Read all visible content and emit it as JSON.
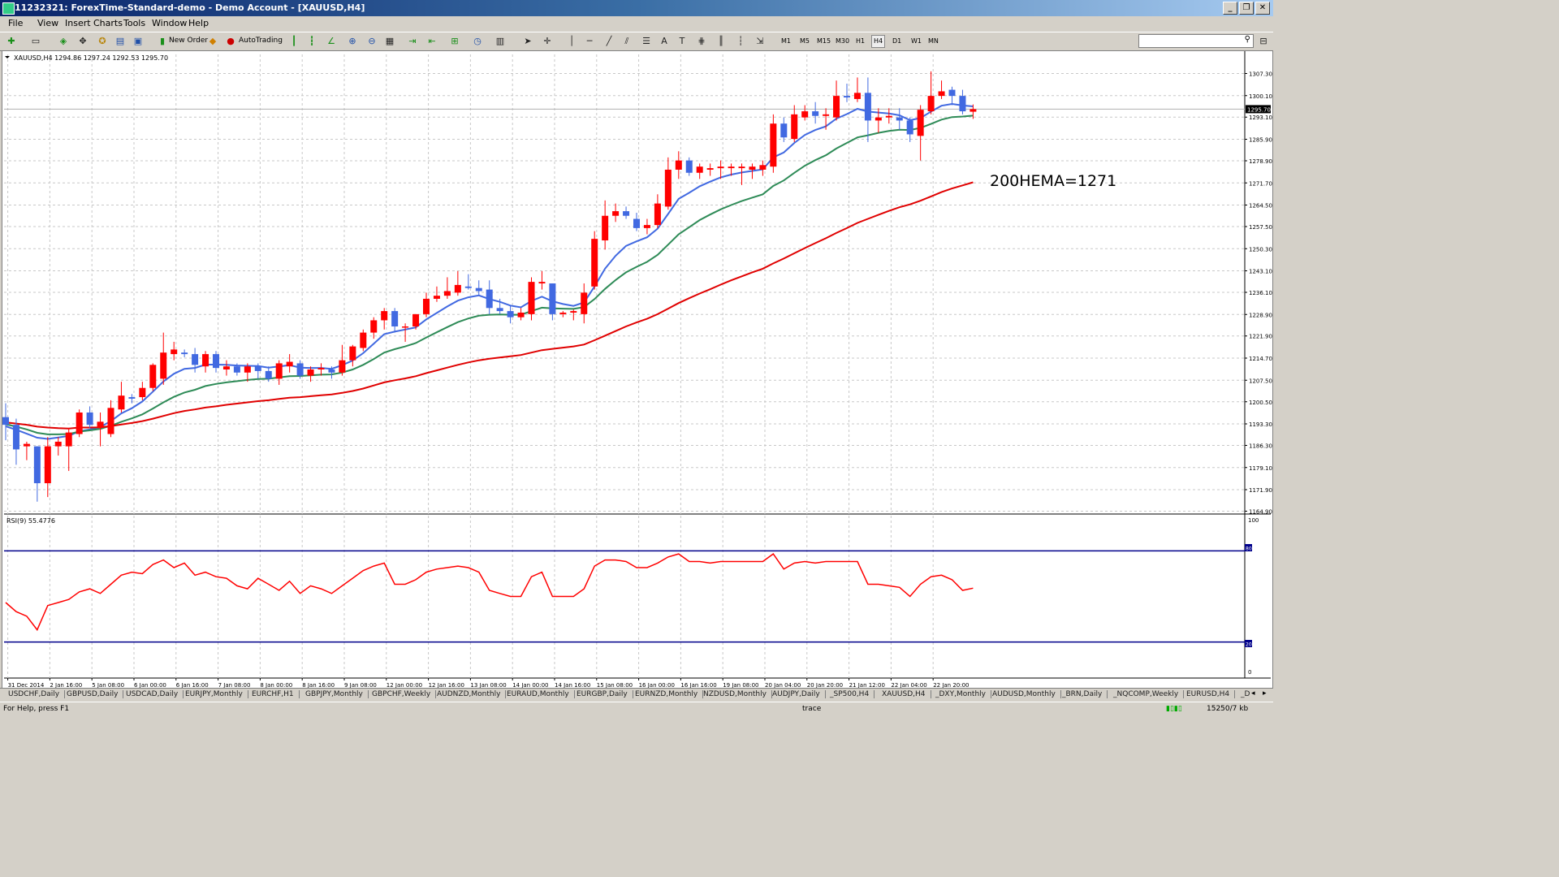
{
  "window": {
    "title": "11232321: ForexTime-Standard-demo - Demo Account - [XAUUSD,H4]",
    "buttons": [
      "_",
      "❐",
      "✕"
    ]
  },
  "menu": [
    "File",
    "View",
    "Insert",
    "Charts",
    "Tools",
    "Window",
    "Help"
  ],
  "toolbar": {
    "new_order_label": "New Order",
    "autotrading_label": "AutoTrading",
    "timeframes": [
      "M1",
      "M5",
      "M15",
      "M30",
      "H1",
      "H4",
      "D1",
      "W1",
      "MN"
    ],
    "active_timeframe": "H4"
  },
  "chart": {
    "header": "XAUUSD,H4  1294.86 1297.24 1292.53 1295.70",
    "annotation": "200HEMA=1271",
    "current_price": "1295.70",
    "price_ticks": [
      "1307.30",
      "1300.10",
      "1293.10",
      "1285.90",
      "1278.90",
      "1271.70",
      "1264.50",
      "1257.50",
      "1250.30",
      "1243.10",
      "1236.10",
      "1228.90",
      "1221.90",
      "1214.70",
      "1207.50",
      "1200.50",
      "1193.30",
      "1186.30",
      "1179.10",
      "1171.90",
      "1164.90"
    ],
    "time_ticks": [
      "31 Dec 2014",
      "2 Jan 16:00",
      "5 Jan 08:00",
      "6 Jan 00:00",
      "6 Jan 16:00",
      "7 Jan 08:00",
      "8 Jan 00:00",
      "8 Jan 16:00",
      "9 Jan 08:00",
      "12 Jan 00:00",
      "12 Jan 16:00",
      "13 Jan 08:00",
      "14 Jan 00:00",
      "14 Jan 16:00",
      "15 Jan 08:00",
      "16 Jan 00:00",
      "16 Jan 16:00",
      "19 Jan 08:00",
      "20 Jan 04:00",
      "20 Jan 20:00",
      "21 Jan 12:00",
      "22 Jan 04:00",
      "22 Jan 20:00"
    ],
    "colors": {
      "bull": "#4169e1",
      "bear": "#ff0000",
      "ema_fast": "#4169e1",
      "ema_mid": "#2e8b57",
      "ema_slow": "#e00000",
      "grid": "#c8c8c8"
    }
  },
  "rsi": {
    "header": "RSI(9) 55.4776",
    "levels": [
      "100",
      "80",
      "20",
      "0"
    ],
    "color": "#ff0000",
    "level_color": "#00008b"
  },
  "chart_data": {
    "type": "candlestick",
    "symbol": "XAUUSD",
    "timeframe": "H4",
    "ylim": [
      1164.9,
      1310.0
    ],
    "candles": [
      [
        1195.5,
        1200.0,
        1188.0,
        1193.0
      ],
      [
        1193.0,
        1195.0,
        1180.0,
        1185.0
      ],
      [
        1186.0,
        1187.5,
        1181.5,
        1186.8
      ],
      [
        1186.0,
        1186.0,
        1168.0,
        1174.0
      ],
      [
        1174.0,
        1189.0,
        1169.5,
        1186.0
      ],
      [
        1186.0,
        1189.0,
        1183.0,
        1187.5
      ],
      [
        1186.0,
        1192.0,
        1178.0,
        1190.5
      ],
      [
        1190.0,
        1198.0,
        1189.0,
        1197.0
      ],
      [
        1197.0,
        1199.0,
        1192.0,
        1193.0
      ],
      [
        1192.0,
        1197.0,
        1186.0,
        1194.0
      ],
      [
        1190.0,
        1201.0,
        1189.0,
        1198.5
      ],
      [
        1198.0,
        1207.0,
        1197.0,
        1202.5
      ],
      [
        1202.0,
        1203.0,
        1200.0,
        1201.5
      ],
      [
        1202.0,
        1207.0,
        1201.0,
        1205.0
      ],
      [
        1205.0,
        1213.0,
        1204.0,
        1212.5
      ],
      [
        1208.0,
        1223.0,
        1206.0,
        1216.5
      ],
      [
        1216.0,
        1220.0,
        1214.0,
        1217.5
      ],
      [
        1216.5,
        1217.5,
        1215.0,
        1216.0
      ],
      [
        1216.0,
        1218.0,
        1210.0,
        1212.5
      ],
      [
        1212.0,
        1217.0,
        1210.0,
        1216.0
      ],
      [
        1216.0,
        1217.0,
        1210.0,
        1211.5
      ],
      [
        1211.0,
        1214.0,
        1209.0,
        1212.0
      ],
      [
        1212.0,
        1213.0,
        1209.0,
        1210.0
      ],
      [
        1210.0,
        1213.0,
        1207.0,
        1212.0
      ],
      [
        1212.0,
        1213.0,
        1208.0,
        1210.5
      ],
      [
        1210.5,
        1212.0,
        1207.0,
        1208.0
      ],
      [
        1208.0,
        1214.0,
        1206.0,
        1213.0
      ],
      [
        1212.0,
        1216.0,
        1210.0,
        1213.5
      ],
      [
        1213.0,
        1214.0,
        1208.0,
        1209.0
      ],
      [
        1209.0,
        1212.0,
        1207.0,
        1211.0
      ],
      [
        1211.0,
        1213.0,
        1209.0,
        1211.5
      ],
      [
        1211.0,
        1212.0,
        1208.0,
        1210.0
      ],
      [
        1210.0,
        1219.0,
        1209.0,
        1214.0
      ],
      [
        1214.0,
        1219.0,
        1212.0,
        1218.5
      ],
      [
        1218.0,
        1224.0,
        1217.0,
        1223.0
      ],
      [
        1223.0,
        1228.0,
        1221.0,
        1227.0
      ],
      [
        1227.0,
        1231.0,
        1224.0,
        1230.0
      ],
      [
        1230.0,
        1231.0,
        1223.0,
        1225.0
      ],
      [
        1225.0,
        1226.0,
        1220.0,
        1225.0
      ],
      [
        1225.0,
        1229.0,
        1224.0,
        1229.0
      ],
      [
        1229.0,
        1236.0,
        1228.0,
        1234.0
      ],
      [
        1234.0,
        1238.0,
        1233.0,
        1235.0
      ],
      [
        1235.0,
        1241.0,
        1234.0,
        1236.5
      ],
      [
        1236.0,
        1243.0,
        1235.0,
        1238.5
      ],
      [
        1238.0,
        1242.0,
        1237.0,
        1237.5
      ],
      [
        1237.5,
        1240.0,
        1235.0,
        1236.5
      ],
      [
        1237.0,
        1240.0,
        1229.0,
        1231.0
      ],
      [
        1231.0,
        1234.0,
        1229.0,
        1230.0
      ],
      [
        1230.0,
        1232.0,
        1226.0,
        1228.0
      ],
      [
        1228.0,
        1231.0,
        1227.0,
        1229.5
      ],
      [
        1229.0,
        1241.0,
        1227.0,
        1239.5
      ],
      [
        1239.0,
        1243.0,
        1237.0,
        1239.5
      ],
      [
        1239.0,
        1239.0,
        1227.0,
        1229.0
      ],
      [
        1229.0,
        1230.0,
        1228.0,
        1229.5
      ],
      [
        1229.5,
        1230.5,
        1227.0,
        1230.0
      ],
      [
        1229.0,
        1239.0,
        1226.0,
        1236.0
      ],
      [
        1238.0,
        1256.0,
        1237.0,
        1253.5
      ],
      [
        1253.0,
        1266.0,
        1250.0,
        1261.0
      ],
      [
        1261.0,
        1265.0,
        1259.0,
        1262.5
      ],
      [
        1262.5,
        1264.0,
        1260.0,
        1261.0
      ],
      [
        1260.0,
        1262.0,
        1256.0,
        1257.0
      ],
      [
        1257.0,
        1260.0,
        1255.0,
        1258.0
      ],
      [
        1258.0,
        1268.0,
        1257.0,
        1265.0
      ],
      [
        1264.0,
        1280.0,
        1263.0,
        1276.0
      ],
      [
        1276.0,
        1282.0,
        1273.0,
        1279.0
      ],
      [
        1279.0,
        1280.0,
        1274.0,
        1275.0
      ],
      [
        1275.0,
        1278.0,
        1273.0,
        1277.0
      ],
      [
        1276.0,
        1278.0,
        1274.0,
        1276.5
      ],
      [
        1276.5,
        1279.0,
        1273.0,
        1277.0
      ],
      [
        1276.5,
        1278.0,
        1274.0,
        1277.0
      ],
      [
        1276.5,
        1278.0,
        1271.0,
        1277.0
      ],
      [
        1276.0,
        1278.0,
        1273.0,
        1277.0
      ],
      [
        1276.0,
        1279.0,
        1274.0,
        1277.5
      ],
      [
        1277.0,
        1294.0,
        1275.0,
        1291.0
      ],
      [
        1291.0,
        1293.0,
        1285.0,
        1286.5
      ],
      [
        1286.0,
        1297.0,
        1285.0,
        1294.0
      ],
      [
        1293.0,
        1297.0,
        1292.0,
        1295.0
      ],
      [
        1295.0,
        1298.0,
        1291.0,
        1293.5
      ],
      [
        1293.5,
        1296.0,
        1289.0,
        1294.0
      ],
      [
        1293.0,
        1305.0,
        1292.0,
        1300.0
      ],
      [
        1300.0,
        1304.0,
        1298.0,
        1299.5
      ],
      [
        1299.0,
        1306.0,
        1298.0,
        1301.0
      ],
      [
        1301.0,
        1306.0,
        1285.0,
        1292.0
      ],
      [
        1292.0,
        1296.0,
        1288.0,
        1293.0
      ],
      [
        1293.0,
        1296.0,
        1291.0,
        1293.5
      ],
      [
        1293.0,
        1296.0,
        1289.0,
        1292.0
      ],
      [
        1292.0,
        1293.0,
        1285.0,
        1287.5
      ],
      [
        1287.0,
        1297.0,
        1279.0,
        1295.5
      ],
      [
        1295.0,
        1308.0,
        1294.0,
        1300.0
      ],
      [
        1300.0,
        1305.0,
        1299.0,
        1301.5
      ],
      [
        1302.0,
        1303.0,
        1297.0,
        1300.0
      ],
      [
        1300.0,
        1302.0,
        1294.0,
        1295.0
      ],
      [
        1294.86,
        1297.24,
        1292.53,
        1295.7
      ]
    ],
    "ema_fast": [
      1192.5,
      1191.4,
      1190.1,
      1188.8,
      1188.4,
      1188.9,
      1189.4,
      1190.9,
      1191.5,
      1192.3,
      1194.2,
      1196.7,
      1198.4,
      1200.6,
      1203.8,
      1207.1,
      1209.6,
      1211.2,
      1211.5,
      1212.6,
      1212.6,
      1212.5,
      1212.3,
      1212.2,
      1212.1,
      1211.6,
      1212.0,
      1212.4,
      1211.6,
      1211.5,
      1211.5,
      1211.2,
      1212.4,
      1213.9,
      1216.3,
      1219.4,
      1222.5,
      1223.3,
      1224.0,
      1224.7,
      1227.3,
      1229.4,
      1231.5,
      1233.4,
      1234.5,
      1235.1,
      1233.9,
      1233.0,
      1231.8,
      1231.2,
      1233.3,
      1234.7,
      1233.2,
      1232.3,
      1231.7,
      1232.8,
      1238.0,
      1243.8,
      1248.0,
      1251.2,
      1252.7,
      1254.0,
      1256.8,
      1261.6,
      1266.5,
      1268.5,
      1270.6,
      1272.1,
      1273.5,
      1274.4,
      1275.1,
      1275.6,
      1276.1,
      1280.0,
      1281.6,
      1284.7,
      1287.3,
      1288.9,
      1290.1,
      1292.6,
      1294.1,
      1295.8,
      1294.9,
      1294.6,
      1294.3,
      1293.7,
      1292.1,
      1292.8,
      1294.9,
      1296.8,
      1297.4,
      1296.9,
      1296.6
    ],
    "ema_mid": [
      1193.2,
      1192.4,
      1191.5,
      1190.4,
      1189.9,
      1189.9,
      1190.0,
      1190.8,
      1191.2,
      1191.7,
      1192.7,
      1194.0,
      1195.1,
      1196.4,
      1198.3,
      1200.3,
      1202.1,
      1203.5,
      1204.4,
      1205.6,
      1206.3,
      1206.8,
      1207.2,
      1207.6,
      1207.9,
      1208.0,
      1208.4,
      1208.8,
      1208.9,
      1209.1,
      1209.3,
      1209.4,
      1210.0,
      1211.0,
      1212.5,
      1214.4,
      1216.5,
      1217.6,
      1218.5,
      1219.6,
      1221.4,
      1223.1,
      1224.8,
      1226.4,
      1227.6,
      1228.5,
      1228.8,
      1228.9,
      1228.8,
      1228.8,
      1230.0,
      1231.1,
      1230.9,
      1230.8,
      1230.7,
      1231.3,
      1233.9,
      1237.2,
      1240.1,
      1242.6,
      1244.4,
      1246.0,
      1248.3,
      1251.6,
      1255.0,
      1257.3,
      1259.6,
      1261.4,
      1263.1,
      1264.5,
      1265.8,
      1266.9,
      1268.0,
      1270.7,
      1272.5,
      1275.0,
      1277.3,
      1279.1,
      1280.7,
      1282.9,
      1284.7,
      1286.5,
      1287.2,
      1288.0,
      1288.6,
      1289.0,
      1288.9,
      1289.6,
      1290.9,
      1292.3,
      1293.1,
      1293.3,
      1293.6
    ],
    "ema_slow": [
      1193.8,
      1193.4,
      1193.0,
      1192.4,
      1192.1,
      1191.9,
      1191.8,
      1192.1,
      1192.1,
      1192.2,
      1192.6,
      1193.1,
      1193.6,
      1194.2,
      1195.0,
      1195.9,
      1196.8,
      1197.5,
      1198.0,
      1198.6,
      1199.0,
      1199.5,
      1199.9,
      1200.3,
      1200.7,
      1201.0,
      1201.4,
      1201.8,
      1202.0,
      1202.3,
      1202.6,
      1202.9,
      1203.4,
      1204.0,
      1204.8,
      1205.8,
      1206.8,
      1207.5,
      1208.1,
      1208.8,
      1209.8,
      1210.7,
      1211.6,
      1212.5,
      1213.3,
      1214.0,
      1214.5,
      1214.9,
      1215.3,
      1215.7,
      1216.5,
      1217.3,
      1217.7,
      1218.1,
      1218.5,
      1219.1,
      1220.5,
      1222.0,
      1223.5,
      1225.0,
      1226.3,
      1227.5,
      1229.0,
      1230.8,
      1232.6,
      1234.2,
      1235.7,
      1237.1,
      1238.6,
      1240.0,
      1241.3,
      1242.6,
      1243.8,
      1245.5,
      1247.1,
      1248.8,
      1250.5,
      1252.1,
      1253.7,
      1255.4,
      1257.0,
      1258.7,
      1260.0,
      1261.3,
      1262.6,
      1263.8,
      1264.7,
      1265.9,
      1267.3,
      1268.7,
      1269.9,
      1270.9,
      1271.9
    ],
    "rsi": [
      46,
      40,
      37,
      28,
      44,
      46,
      48,
      53,
      55,
      52,
      58,
      64,
      66,
      65,
      71,
      74,
      69,
      72,
      64,
      66,
      63,
      62,
      57,
      55,
      62,
      58,
      54,
      60,
      52,
      57,
      55,
      52,
      57,
      62,
      67,
      70,
      72,
      58,
      58,
      61,
      66,
      68,
      69,
      70,
      69,
      66,
      54,
      52,
      50,
      50,
      63,
      66,
      50,
      50,
      50,
      55,
      70,
      74,
      74,
      73,
      69,
      69,
      72,
      76,
      78,
      73,
      73,
      72,
      73,
      73,
      73,
      73,
      73,
      78,
      68,
      72,
      73,
      72,
      73,
      73,
      73,
      73,
      58,
      58,
      57,
      56,
      50,
      58,
      63,
      64,
      61,
      54,
      55.48
    ],
    "rsi_levels": [
      80,
      20
    ],
    "annotation": "200HEMA=1271"
  }
}
